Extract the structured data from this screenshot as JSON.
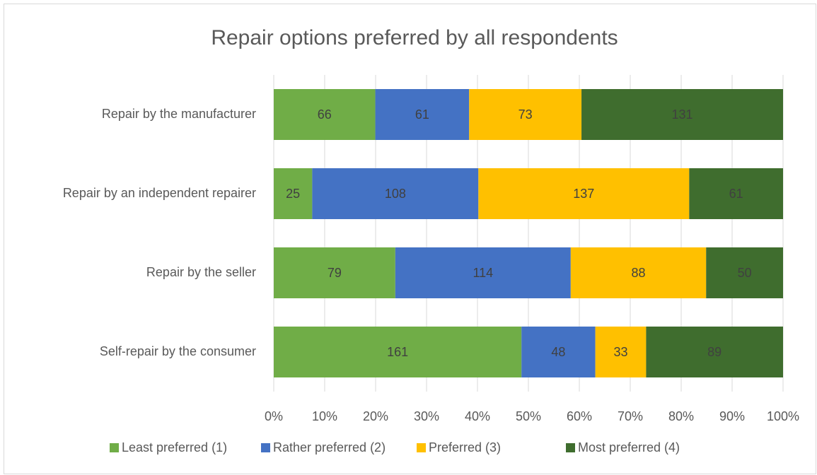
{
  "chart_data": {
    "type": "bar",
    "orientation": "horizontal",
    "stacked": "percent",
    "title": "Repair options preferred by all respondents",
    "categories": [
      "Repair by the manufacturer",
      "Repair by an independent repairer",
      "Repair by the seller",
      "Self-repair by the consumer"
    ],
    "series": [
      {
        "name": "Least preferred (1)",
        "color": "#70ad47",
        "values": [
          66,
          25,
          79,
          161
        ]
      },
      {
        "name": "Rather preferred (2)",
        "color": "#4472c4",
        "values": [
          61,
          108,
          114,
          48
        ]
      },
      {
        "name": "Preferred (3)",
        "color": "#ffc000",
        "values": [
          73,
          137,
          88,
          33
        ]
      },
      {
        "name": "Most preferred (4)",
        "color": "#3f6d2e",
        "values": [
          131,
          61,
          50,
          89
        ]
      }
    ],
    "xlim": [
      0,
      100
    ],
    "xticks": [
      {
        "value": 0,
        "label": "0%"
      },
      {
        "value": 10,
        "label": "10%"
      },
      {
        "value": 20,
        "label": "20%"
      },
      {
        "value": 30,
        "label": "30%"
      },
      {
        "value": 40,
        "label": "40%"
      },
      {
        "value": 50,
        "label": "50%"
      },
      {
        "value": 60,
        "label": "60%"
      },
      {
        "value": 70,
        "label": "70%"
      },
      {
        "value": 80,
        "label": "80%"
      },
      {
        "value": 90,
        "label": "90%"
      },
      {
        "value": 100,
        "label": "100%"
      }
    ],
    "grid": true,
    "legend": "bottom"
  }
}
